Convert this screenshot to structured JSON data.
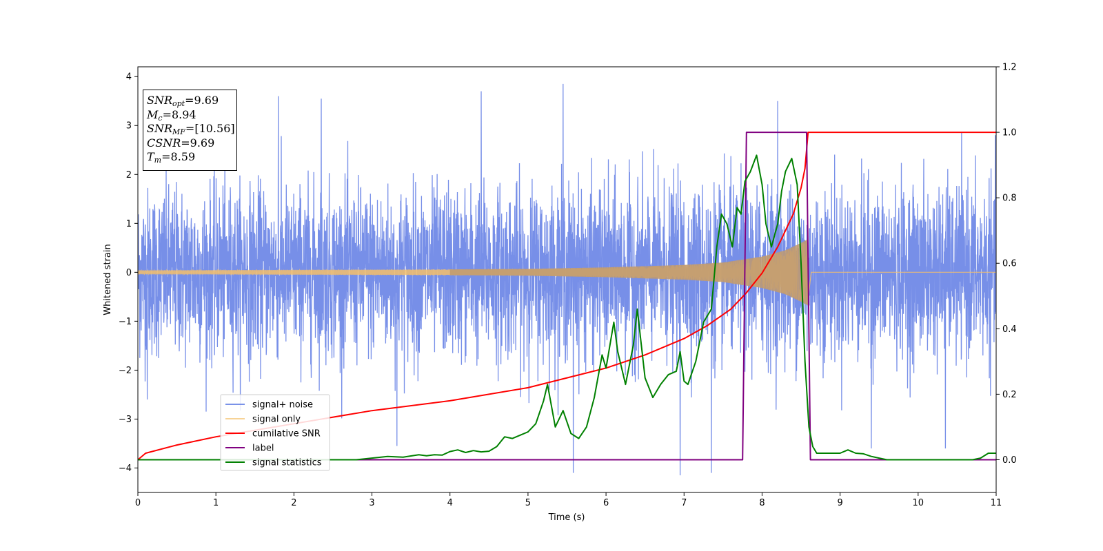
{
  "chart_data": {
    "type": "line",
    "title": "",
    "xlabel": "Time (s)",
    "ylabel": "Whitened strain",
    "xlim": [
      0,
      11
    ],
    "ylim": [
      -4.5,
      4.2
    ],
    "y2lim": [
      -0.1,
      1.2
    ],
    "x_ticks": [
      "0",
      "1",
      "2",
      "3",
      "4",
      "5",
      "6",
      "7",
      "8",
      "9",
      "10",
      "11"
    ],
    "y_ticks": [
      "4",
      "3",
      "2",
      "1",
      "0",
      "−1",
      "−2",
      "−3",
      "−4"
    ],
    "y2_ticks": [
      "1.2",
      "1.0",
      "0.8",
      "0.6",
      "0.4",
      "0.2",
      "0.0"
    ],
    "grid": false,
    "legend_position": "lower-left",
    "series": [
      {
        "name": "signal+ noise",
        "axis": "left",
        "color": "#6b86e6",
        "description_values": "dense noise, roughly gaussian, amplitude up to about ±3.8",
        "peak_points": [
          [
            0.12,
            -2.6
          ],
          [
            1.8,
            3.6
          ],
          [
            2.35,
            3.55
          ],
          [
            3.32,
            -3.55
          ],
          [
            4.4,
            3.7
          ],
          [
            5.45,
            3.85
          ],
          [
            5.58,
            -4.1
          ],
          [
            6.95,
            -4.15
          ],
          [
            7.35,
            -4.1
          ],
          [
            8.2,
            3.5
          ],
          [
            9.4,
            -3.6
          ],
          [
            10.35,
            -3.6
          ]
        ]
      },
      {
        "name": "signal only",
        "axis": "left",
        "color": "#f4c06a",
        "chirp_end_time": 8.59,
        "envelope": [
          [
            0,
            0.04
          ],
          [
            2,
            0.05
          ],
          [
            4,
            0.06
          ],
          [
            5,
            0.07
          ],
          [
            6,
            0.1
          ],
          [
            7,
            0.15
          ],
          [
            7.5,
            0.2
          ],
          [
            8.0,
            0.32
          ],
          [
            8.3,
            0.45
          ],
          [
            8.5,
            0.6
          ],
          [
            8.59,
            0.68
          ]
        ]
      },
      {
        "name": "cumilative SNR",
        "axis": "right",
        "color": "#ff0000",
        "x": [
          0,
          0.1,
          0.5,
          1,
          2,
          3,
          4,
          5,
          6,
          6.5,
          7,
          7.3,
          7.6,
          7.8,
          8.0,
          8.2,
          8.4,
          8.5,
          8.55,
          8.59,
          8.7,
          11
        ],
        "y": [
          0.0,
          0.02,
          0.045,
          0.07,
          0.11,
          0.15,
          0.18,
          0.22,
          0.28,
          0.32,
          0.37,
          0.41,
          0.46,
          0.51,
          0.57,
          0.65,
          0.75,
          0.83,
          0.89,
          1.0,
          1.0,
          1.0
        ]
      },
      {
        "name": "label",
        "axis": "right",
        "color": "#800080",
        "x": [
          0,
          7.75,
          7.8,
          8.57,
          8.62,
          11
        ],
        "y": [
          0,
          0,
          1,
          1,
          0,
          0
        ]
      },
      {
        "name": "signal statistics",
        "axis": "right",
        "color": "#008000",
        "x": [
          0,
          0.5,
          1,
          1.5,
          2,
          2.5,
          2.8,
          3.0,
          3.2,
          3.4,
          3.6,
          3.7,
          3.8,
          3.9,
          4.0,
          4.1,
          4.2,
          4.3,
          4.4,
          4.5,
          4.6,
          4.7,
          4.8,
          4.9,
          5.0,
          5.1,
          5.2,
          5.25,
          5.35,
          5.45,
          5.55,
          5.65,
          5.75,
          5.85,
          5.95,
          6.0,
          6.1,
          6.15,
          6.25,
          6.35,
          6.4,
          6.5,
          6.6,
          6.7,
          6.8,
          6.9,
          6.95,
          7.0,
          7.05,
          7.15,
          7.25,
          7.35,
          7.42,
          7.48,
          7.55,
          7.62,
          7.68,
          7.73,
          7.78,
          7.85,
          7.93,
          8.0,
          8.05,
          8.12,
          8.2,
          8.25,
          8.3,
          8.38,
          8.45,
          8.5,
          8.55,
          8.6,
          8.65,
          8.7,
          8.8,
          8.9,
          9.0,
          9.1,
          9.2,
          9.3,
          9.4,
          9.5,
          9.6,
          9.7,
          9.8,
          10.0,
          10.2,
          10.5,
          10.7,
          10.8,
          10.9,
          11.0
        ],
        "y": [
          0.0,
          0.0,
          0.0,
          0.0,
          0.0,
          0.0,
          0.0,
          0.005,
          0.01,
          0.008,
          0.015,
          0.012,
          0.015,
          0.014,
          0.025,
          0.03,
          0.022,
          0.028,
          0.024,
          0.026,
          0.04,
          0.07,
          0.065,
          0.075,
          0.085,
          0.11,
          0.18,
          0.23,
          0.1,
          0.15,
          0.08,
          0.065,
          0.1,
          0.19,
          0.32,
          0.28,
          0.42,
          0.33,
          0.23,
          0.35,
          0.46,
          0.25,
          0.19,
          0.23,
          0.26,
          0.27,
          0.33,
          0.24,
          0.23,
          0.3,
          0.42,
          0.46,
          0.65,
          0.75,
          0.72,
          0.65,
          0.77,
          0.75,
          0.85,
          0.88,
          0.93,
          0.84,
          0.72,
          0.65,
          0.72,
          0.82,
          0.88,
          0.92,
          0.84,
          0.6,
          0.3,
          0.1,
          0.04,
          0.02,
          0.02,
          0.02,
          0.02,
          0.03,
          0.02,
          0.018,
          0.01,
          0.005,
          0.0,
          0.0,
          0.0,
          0.0,
          0.0,
          0.0,
          0.0,
          0.005,
          0.02,
          0.02
        ]
      }
    ],
    "legend": [
      "signal+ noise",
      "signal only",
      "cumilative SNR",
      "label",
      "signal statistics"
    ],
    "annotation_box": {
      "snr_opt": "9.69",
      "mc": "8.94",
      "snr_mf": "[10.56]",
      "csnr": "9.69",
      "tm": "8.59"
    }
  }
}
